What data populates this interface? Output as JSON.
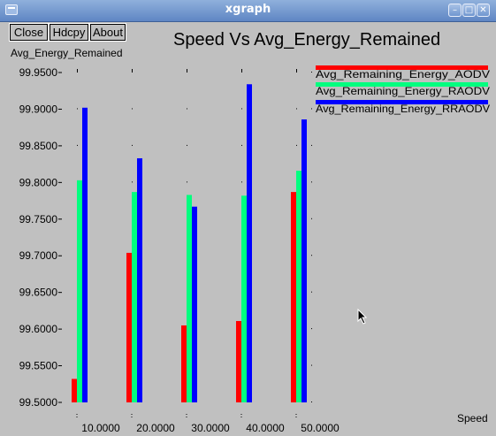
{
  "window": {
    "title": "xgraph",
    "controls": [
      "minimize-icon",
      "maximize-icon",
      "close-icon"
    ]
  },
  "toolbar": {
    "close_label": "Close",
    "hdcpy_label": "Hdcpy",
    "about_label": "About"
  },
  "colors": {
    "background": "#c0c0c0",
    "series": [
      "#ff0000",
      "#00ff7f",
      "#0000ff"
    ]
  },
  "chart_data": {
    "type": "bar",
    "title": "Speed Vs Avg_Energy_Remained",
    "xlabel": "Speed",
    "ylabel": "Avg_Energy_Remained",
    "categories": [
      "10.0000",
      "20.0000",
      "30.0000",
      "40.0000",
      "50.0000"
    ],
    "x": [
      10,
      20,
      30,
      40,
      50
    ],
    "yticks": [
      "99.5000",
      "99.5500",
      "99.6000",
      "99.6500",
      "99.7000",
      "99.7500",
      "99.8000",
      "99.8500",
      "99.9000",
      "99.9500"
    ],
    "ylim": [
      99.5,
      99.95
    ],
    "legend_position": "top-right",
    "grid": "dotted tick marks",
    "series": [
      {
        "name": "Avg_Remaining_Energy_AODV",
        "values": [
          99.532,
          99.704,
          99.605,
          99.611,
          99.787
        ]
      },
      {
        "name": "Avg_Remaining_Energy_RAODV",
        "values": [
          99.803,
          99.787,
          99.783,
          99.782,
          99.816
        ]
      },
      {
        "name": "Avg_Remaining_Energy_RRAODV",
        "values": [
          99.902,
          99.833,
          99.767,
          99.934,
          99.886
        ]
      }
    ]
  }
}
